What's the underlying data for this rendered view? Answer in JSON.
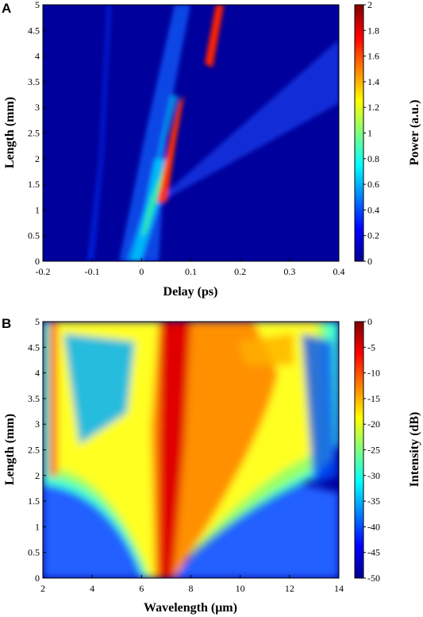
{
  "chart_data": [
    {
      "panel": "A",
      "type": "heatmap",
      "xlabel": "Delay (ps)",
      "ylabel": "Length (mm)",
      "colorbar_label": "Power (a.u.)",
      "xlim": [
        -0.2,
        0.4
      ],
      "ylim": [
        0,
        5
      ],
      "clim": [
        0,
        2
      ],
      "xticks": [
        "-0.2",
        "-0.1",
        "0",
        "0.1",
        "0.2",
        "0.3",
        "0.4"
      ],
      "yticks": [
        "0",
        "0.5",
        "1",
        "1.5",
        "2",
        "2.5",
        "3",
        "3.5",
        "4",
        "4.5",
        "5"
      ],
      "cbticks": [
        "0",
        "0.2",
        "0.4",
        "0.6",
        "0.8",
        "1",
        "1.2",
        "1.4",
        "1.6",
        "1.8",
        "2"
      ],
      "colormap": "jet"
    },
    {
      "panel": "B",
      "type": "heatmap",
      "xlabel": "Wavelength (μm)",
      "ylabel": "Length (mm)",
      "colorbar_label": "Intensity (dB)",
      "xlim": [
        2,
        14
      ],
      "ylim": [
        0,
        5
      ],
      "clim": [
        -50,
        0
      ],
      "xticks": [
        "2",
        "4",
        "6",
        "8",
        "10",
        "12",
        "14"
      ],
      "yticks": [
        "0",
        "0.5",
        "1",
        "1.5",
        "2",
        "2.5",
        "3",
        "3.5",
        "4",
        "4.5",
        "5"
      ],
      "cbticks": [
        "0",
        "-5",
        "-10",
        "-15",
        "-20",
        "-25",
        "-30",
        "-35",
        "-40",
        "-45",
        "-50"
      ],
      "colormap": "jet"
    }
  ]
}
